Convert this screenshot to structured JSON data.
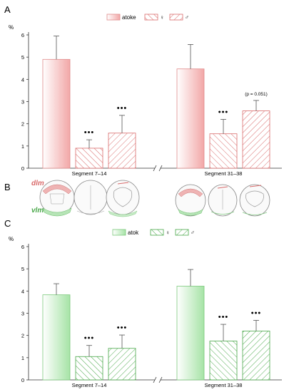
{
  "chart_data": [
    {
      "type": "bar",
      "panel_label": "A",
      "ylabel": "%",
      "ylim": [
        0,
        6
      ],
      "yticks": [
        "0",
        "1",
        "2",
        "3",
        "4",
        "5",
        "6"
      ],
      "categories": [
        "Segment 7–14",
        "Segment 31–38"
      ],
      "legend": {
        "position": "top-center",
        "labels": [
          "atoke",
          "♀",
          "♂"
        ]
      },
      "series": [
        {
          "name": "atoke",
          "values": [
            4.9,
            4.47
          ],
          "errors": [
            1.05,
            1.1
          ],
          "color": "#e89a9a",
          "fill": "gradient"
        },
        {
          "name": "♀",
          "values": [
            0.9,
            1.55
          ],
          "errors": [
            0.38,
            0.65
          ],
          "color": "#d96b6b",
          "fill": "hatch"
        },
        {
          "name": "♂",
          "values": [
            1.58,
            2.58
          ],
          "errors": [
            0.8,
            0.47
          ],
          "color": "#d96b6b",
          "fill": "hatch"
        }
      ],
      "annotations": [
        {
          "series": 1,
          "category": 0,
          "text": "•••"
        },
        {
          "series": 2,
          "category": 0,
          "text": "•••"
        },
        {
          "series": 1,
          "category": 1,
          "text": "•••"
        },
        {
          "series": 2,
          "category": 1,
          "text": "(p = 0.051)"
        }
      ],
      "axis_break": true
    },
    {
      "type": "bar",
      "panel_label": "C",
      "ylabel": "%",
      "ylim": [
        0,
        6
      ],
      "yticks": [
        "0",
        "1",
        "2",
        "3",
        "4",
        "5",
        "6"
      ],
      "categories": [
        "Segment 7–14",
        "Segment 31–38"
      ],
      "legend": {
        "position": "top-center",
        "labels": [
          "atok",
          "♀",
          "♂"
        ]
      },
      "series": [
        {
          "name": "atok",
          "values": [
            3.83,
            4.22
          ],
          "errors": [
            0.5,
            0.75
          ],
          "color": "#8fd68f",
          "fill": "gradient"
        },
        {
          "name": "♀",
          "values": [
            1.05,
            1.75
          ],
          "errors": [
            0.5,
            0.75
          ],
          "color": "#5cb85c",
          "fill": "hatch"
        },
        {
          "name": "♂",
          "values": [
            1.42,
            2.2
          ],
          "errors": [
            0.6,
            0.48
          ],
          "color": "#5cb85c",
          "fill": "hatch"
        }
      ],
      "annotations": [
        {
          "series": 1,
          "category": 0,
          "text": "•••"
        },
        {
          "series": 2,
          "category": 0,
          "text": "•••"
        },
        {
          "series": 1,
          "category": 1,
          "text": "•••"
        },
        {
          "series": 2,
          "category": 1,
          "text": "•••"
        }
      ],
      "axis_break": true
    }
  ],
  "panel_b": {
    "panel_label": "B",
    "labels": {
      "dim": "dlm",
      "vim": "vlm"
    },
    "colors": {
      "dorsal": "#e8a0a0",
      "ventral": "#a8dda8"
    }
  }
}
